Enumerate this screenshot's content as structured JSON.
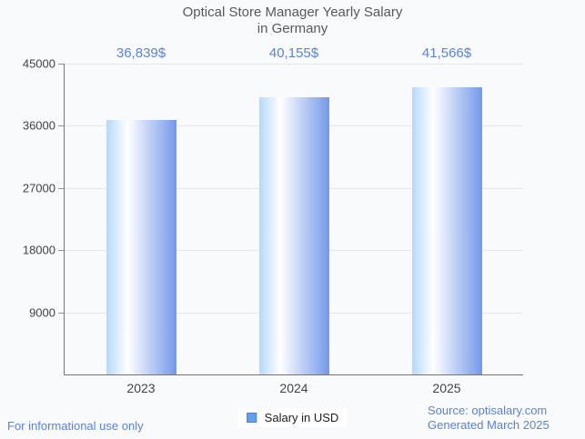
{
  "title": {
    "line1": "Optical Store Manager Yearly Salary",
    "line2": "in Germany"
  },
  "legend": {
    "label": "Salary in USD"
  },
  "footer": {
    "left": "For informational use only",
    "source": "Source: optisalary.com",
    "generated": "Generated March 2025"
  },
  "colors": {
    "background": "#f8fafc",
    "accent_text": "#5b82d8",
    "title_text": "#58585a",
    "tick_label": "#424242",
    "axis": "#767676",
    "gridline": "#e6e6e6",
    "bar_gradient_left": "#b5d9fc",
    "bar_gradient_mid": "#ffffff",
    "bar_gradient_right": "#7398e9",
    "legend_marker_fill": "#63a1ea",
    "legend_marker_border": "#4a7fd0"
  },
  "chart_data": {
    "type": "bar",
    "title": "Optical Store Manager Yearly Salary in Germany",
    "categories": [
      "2023",
      "2024",
      "2025"
    ],
    "values": [
      36839,
      40155,
      41566
    ],
    "value_labels": [
      "36,839$",
      "40,155$",
      "41,566$"
    ],
    "series_name": "Salary in USD",
    "xlabel": "",
    "ylabel": "",
    "ylim": [
      0,
      45000
    ],
    "y_ticks": [
      9000,
      18000,
      27000,
      36000,
      45000
    ],
    "grid": true,
    "legend_position": "bottom"
  }
}
